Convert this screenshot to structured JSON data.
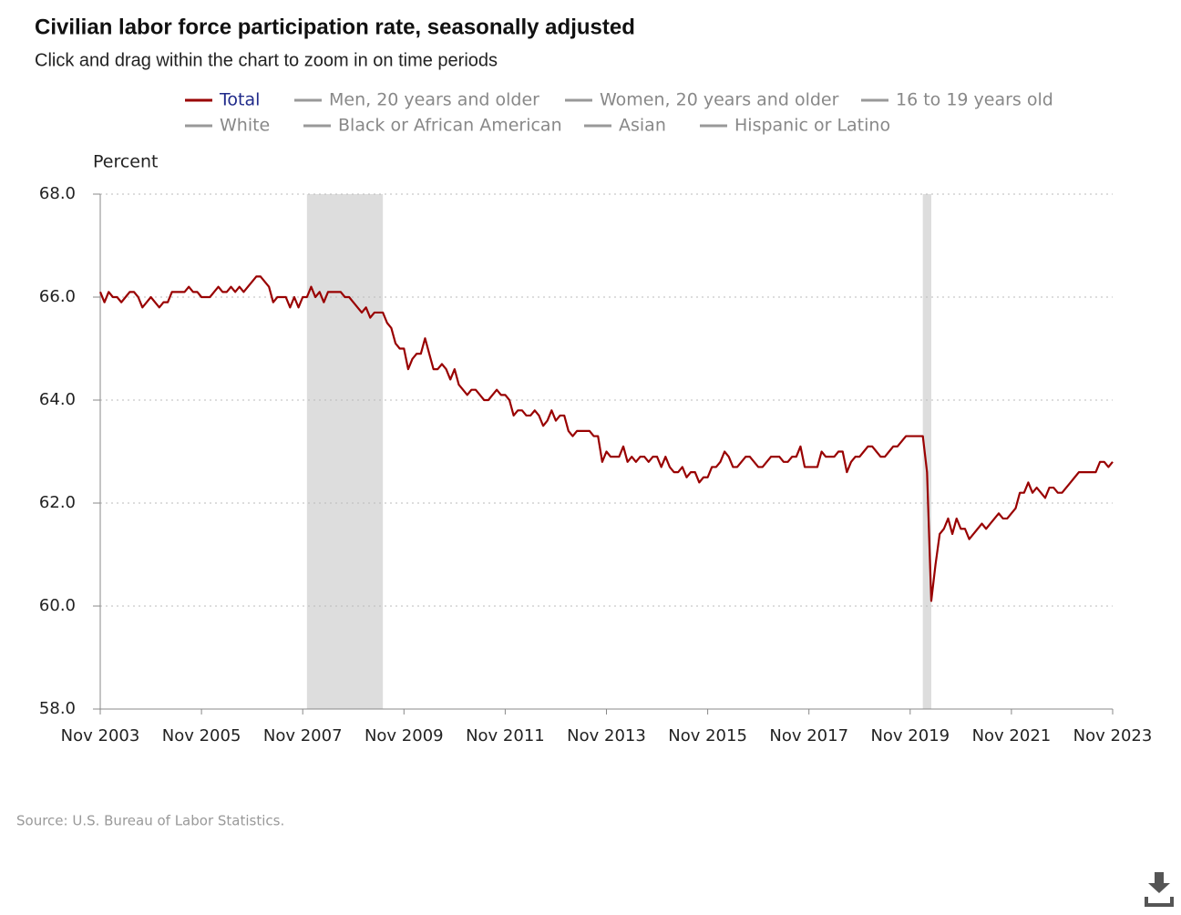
{
  "chart_data": {
    "type": "line",
    "title": "Civilian labor force participation rate, seasonally adjusted",
    "subtitle": "Click and drag within the chart to zoom in on time periods",
    "y_label": "Percent",
    "source": "Source: U.S. Bureau of Labor Statistics.",
    "series": [
      {
        "name": "Total",
        "color": "#990000",
        "visible": true,
        "values": [
          66.1,
          65.9,
          66.1,
          66.0,
          66.0,
          65.9,
          66.0,
          66.1,
          66.1,
          66.0,
          65.8,
          65.9,
          66.0,
          65.9,
          65.8,
          65.9,
          65.9,
          66.1,
          66.1,
          66.1,
          66.1,
          66.2,
          66.1,
          66.1,
          66.0,
          66.0,
          66.0,
          66.1,
          66.2,
          66.1,
          66.1,
          66.2,
          66.1,
          66.2,
          66.1,
          66.2,
          66.3,
          66.4,
          66.4,
          66.3,
          66.2,
          65.9,
          66.0,
          66.0,
          66.0,
          65.8,
          66.0,
          65.8,
          66.0,
          66.0,
          66.2,
          66.0,
          66.1,
          65.9,
          66.1,
          66.1,
          66.1,
          66.1,
          66.0,
          66.0,
          65.9,
          65.8,
          65.7,
          65.8,
          65.6,
          65.7,
          65.7,
          65.7,
          65.5,
          65.4,
          65.1,
          65.0,
          65.0,
          64.6,
          64.8,
          64.9,
          64.9,
          65.2,
          64.9,
          64.6,
          64.6,
          64.7,
          64.6,
          64.4,
          64.6,
          64.3,
          64.2,
          64.1,
          64.2,
          64.2,
          64.1,
          64.0,
          64.0,
          64.1,
          64.2,
          64.1,
          64.1,
          64.0,
          63.7,
          63.8,
          63.8,
          63.7,
          63.7,
          63.8,
          63.7,
          63.5,
          63.6,
          63.8,
          63.6,
          63.7,
          63.7,
          63.4,
          63.3,
          63.4,
          63.4,
          63.4,
          63.4,
          63.3,
          63.3,
          62.8,
          63.0,
          62.9,
          62.9,
          62.9,
          63.1,
          62.8,
          62.9,
          62.8,
          62.9,
          62.9,
          62.8,
          62.9,
          62.9,
          62.7,
          62.9,
          62.7,
          62.6,
          62.6,
          62.7,
          62.5,
          62.6,
          62.6,
          62.4,
          62.5,
          62.5,
          62.7,
          62.7,
          62.8,
          63.0,
          62.9,
          62.7,
          62.7,
          62.8,
          62.9,
          62.9,
          62.8,
          62.7,
          62.7,
          62.8,
          62.9,
          62.9,
          62.9,
          62.8,
          62.8,
          62.9,
          62.9,
          63.1,
          62.7,
          62.7,
          62.7,
          62.7,
          63.0,
          62.9,
          62.9,
          62.9,
          63.0,
          63.0,
          62.6,
          62.8,
          62.9,
          62.9,
          63.0,
          63.1,
          63.1,
          63.0,
          62.9,
          62.9,
          63.0,
          63.1,
          63.1,
          63.2,
          63.3,
          63.3,
          63.3,
          63.3,
          63.3,
          62.6,
          60.1,
          60.8,
          61.4,
          61.5,
          61.7,
          61.4,
          61.7,
          61.5,
          61.5,
          61.3,
          61.4,
          61.5,
          61.6,
          61.5,
          61.6,
          61.7,
          61.8,
          61.7,
          61.7,
          61.8,
          61.9,
          62.2,
          62.2,
          62.4,
          62.2,
          62.3,
          62.2,
          62.1,
          62.3,
          62.3,
          62.2,
          62.2,
          62.3,
          62.4,
          62.5,
          62.6,
          62.6,
          62.6,
          62.6,
          62.6,
          62.8,
          62.8,
          62.7,
          62.8
        ]
      },
      {
        "name": "Men, 20 years and older",
        "color": "#999999",
        "visible": false
      },
      {
        "name": "Women, 20 years and older",
        "color": "#999999",
        "visible": false
      },
      {
        "name": "16 to 19 years old",
        "color": "#999999",
        "visible": false
      },
      {
        "name": "White",
        "color": "#999999",
        "visible": false
      },
      {
        "name": "Black or African American",
        "color": "#999999",
        "visible": false
      },
      {
        "name": "Asian",
        "color": "#999999",
        "visible": false
      },
      {
        "name": "Hispanic or Latino",
        "color": "#999999",
        "visible": false
      }
    ],
    "x_start": "2003-11",
    "x_end": "2023-11",
    "x_step_months": 1,
    "xlim": [
      "2003-11",
      "2023-11"
    ],
    "xticks": [
      {
        "value": "2003-11",
        "label": "Nov 2003"
      },
      {
        "value": "2005-11",
        "label": "Nov 2005"
      },
      {
        "value": "2007-11",
        "label": "Nov 2007"
      },
      {
        "value": "2009-11",
        "label": "Nov 2009"
      },
      {
        "value": "2011-11",
        "label": "Nov 2011"
      },
      {
        "value": "2013-11",
        "label": "Nov 2013"
      },
      {
        "value": "2015-11",
        "label": "Nov 2015"
      },
      {
        "value": "2017-11",
        "label": "Nov 2017"
      },
      {
        "value": "2019-11",
        "label": "Nov 2019"
      },
      {
        "value": "2021-11",
        "label": "Nov 2021"
      },
      {
        "value": "2023-11",
        "label": "Nov 2023"
      }
    ],
    "ylim": [
      58,
      68
    ],
    "yticks": [
      {
        "value": 58,
        "label": "58.0"
      },
      {
        "value": 60,
        "label": "60.0"
      },
      {
        "value": 62,
        "label": "62.0"
      },
      {
        "value": 64,
        "label": "64.0"
      },
      {
        "value": 66,
        "label": "66.0"
      },
      {
        "value": 68,
        "label": "68.0"
      }
    ],
    "grid": true,
    "shaded_periods": [
      {
        "start": "2007-12",
        "end": "2009-06"
      },
      {
        "start": "2020-02",
        "end": "2020-04"
      }
    ],
    "shade_color": "#dddddd"
  }
}
